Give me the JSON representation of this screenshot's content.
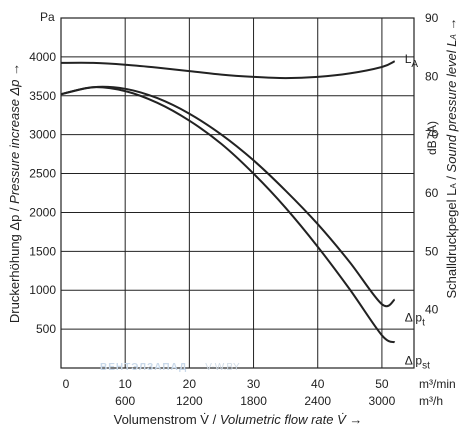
{
  "chart_data": {
    "type": "line",
    "y_unit": "Pa",
    "y2_unit": "dB (A)",
    "x_unit_top": "m³/min",
    "x_unit_bottom": "m³/h",
    "ylabel_main": "Druckerhöhung Δp / ",
    "ylabel_italic": "Pressure increase Δp →",
    "y2label_main": "Schalldruckpegel L",
    "y2label_sub": "A",
    "y2label_sep": " / ",
    "y2label_italic": "Sound pressure level L",
    "y2label_italic_sub": "A",
    "y2label_arrow": " →",
    "xlabel_main": "Volumenstrom V̇ / ",
    "xlabel_italic": "Volumetric flow rate V̇ →",
    "xlim": [
      0,
      55
    ],
    "ylim": [
      0,
      4500
    ],
    "y2lim": [
      30,
      90
    ],
    "x_ticks_top": [
      "0",
      "10",
      "20",
      "30",
      "40",
      "50"
    ],
    "x_tick_values": [
      0,
      10,
      20,
      30,
      40,
      50
    ],
    "x_ticks_bottom": [
      "600",
      "1200",
      "1800",
      "2400",
      "3000"
    ],
    "x_ticks_bottom_values": [
      10,
      20,
      30,
      40,
      50
    ],
    "y_ticks": [
      500,
      1000,
      1500,
      2000,
      2500,
      3000,
      3500,
      4000
    ],
    "y2_ticks": [
      40,
      50,
      60,
      70,
      80,
      90
    ],
    "grid": true,
    "series": [
      {
        "name": "L",
        "name_sub": "A",
        "axis": "right",
        "x": [
          0,
          5,
          10,
          15,
          20,
          25,
          30,
          35,
          40,
          45,
          50,
          52
        ],
        "y": [
          82.3,
          82.3,
          82.0,
          81.5,
          80.9,
          80.3,
          79.9,
          79.7,
          79.9,
          80.5,
          81.6,
          82.6
        ]
      },
      {
        "name": "Δ p",
        "name_sub": "t",
        "axis": "left",
        "x": [
          0,
          5,
          10,
          15,
          20,
          25,
          30,
          35,
          40,
          45,
          50,
          52
        ],
        "y": [
          3520,
          3610,
          3590,
          3470,
          3270,
          3000,
          2670,
          2280,
          1850,
          1360,
          820,
          880
        ]
      },
      {
        "name": "Δ p",
        "name_sub": "st",
        "axis": "left",
        "x": [
          0,
          5,
          10,
          15,
          20,
          25,
          30,
          35,
          40,
          45,
          50,
          52
        ],
        "y": [
          3520,
          3610,
          3560,
          3410,
          3180,
          2880,
          2500,
          2060,
          1560,
          1010,
          420,
          330
        ]
      }
    ]
  },
  "watermark": {
    "brand_a": "ВЕНТЭЛ",
    "brand_b": "ЗАПАД",
    "site": "V-W.BY"
  }
}
